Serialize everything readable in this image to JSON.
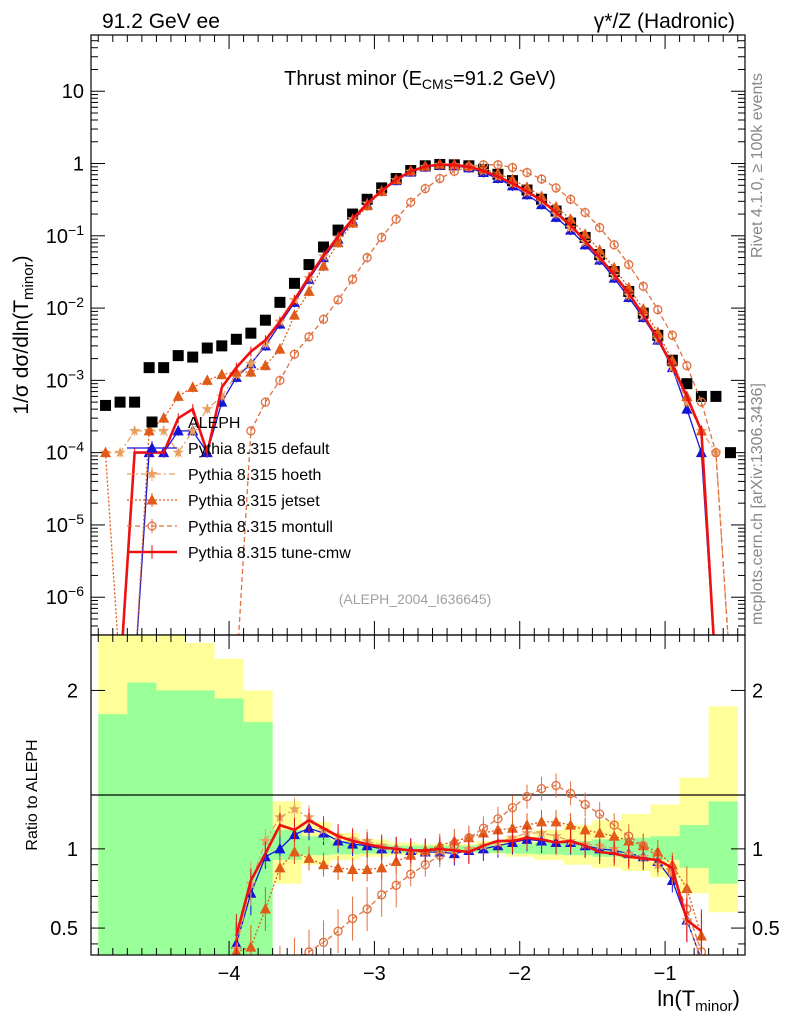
{
  "header": {
    "left": "91.2 GeV ee",
    "right": "γ*/Z (Hadronic)"
  },
  "side_labels": {
    "rivet": "Rivet 4.1.0, ≥ 100k events",
    "mcplots": "mcplots.cern.ch [arXiv:1306.3436]"
  },
  "colors": {
    "aleph": "#000000",
    "default": "#1515d8",
    "hoeth": "#e8a060",
    "jetset": "#e05a18",
    "montull": "#e07040",
    "tune_cmw": "#ee1111",
    "band_inner": "#99ff99",
    "band_outer": "#ffff99"
  },
  "chart_data": [
    {
      "type": "line",
      "panel": "main",
      "title_parts": {
        "main": "Thrust minor (E",
        "sub": "CMS",
        "tail": "=91.2 GeV)"
      },
      "ylabel_parts": {
        "main": "1/σ  dσ/dln(T",
        "sub": "minor",
        "tail": ")"
      },
      "xlabel": "",
      "yscale": "log",
      "xlim": [
        -4.95,
        -0.45
      ],
      "ylim": [
        3e-07,
        60
      ],
      "y_ticks": [
        {
          "value": 1e-06,
          "base": "10",
          "exp": "−6"
        },
        {
          "value": 1e-05,
          "base": "10",
          "exp": "−5"
        },
        {
          "value": 0.0001,
          "base": "10",
          "exp": "−4"
        },
        {
          "value": 0.001,
          "base": "10",
          "exp": "−3"
        },
        {
          "value": 0.01,
          "base": "10",
          "exp": "−2"
        },
        {
          "value": 0.1,
          "base": "10",
          "exp": "−1"
        },
        {
          "value": 1,
          "base": "1",
          "exp": ""
        },
        {
          "value": 10,
          "base": "10",
          "exp": ""
        }
      ],
      "watermark": "(ALEPH_2004_I636645)",
      "legend": [
        {
          "key": "aleph",
          "label": "ALEPH"
        },
        {
          "key": "default",
          "label": "Pythia 8.315 default"
        },
        {
          "key": "hoeth",
          "label": "Pythia 8.315 hoeth"
        },
        {
          "key": "jetset",
          "label": "Pythia 8.315 jetset"
        },
        {
          "key": "montull",
          "label": "Pythia 8.315 montull"
        },
        {
          "key": "tune_cmw",
          "label": "Pythia 8.315 tune-cmw"
        }
      ],
      "x": [
        -4.85,
        -4.75,
        -4.65,
        -4.55,
        -4.45,
        -4.35,
        -4.25,
        -4.15,
        -4.05,
        -3.95,
        -3.85,
        -3.75,
        -3.65,
        -3.55,
        -3.45,
        -3.35,
        -3.25,
        -3.15,
        -3.05,
        -2.95,
        -2.85,
        -2.75,
        -2.65,
        -2.55,
        -2.45,
        -2.35,
        -2.25,
        -2.15,
        -2.05,
        -1.95,
        -1.85,
        -1.75,
        -1.65,
        -1.55,
        -1.45,
        -1.35,
        -1.25,
        -1.15,
        -1.05,
        -0.95,
        -0.85,
        -0.75,
        -0.65,
        -0.55
      ],
      "series": [
        {
          "key": "aleph",
          "name": "ALEPH",
          "style": "square",
          "values": [
            0.00045,
            0.0005,
            0.0005,
            0.0015,
            0.0015,
            0.0022,
            0.0021,
            0.0028,
            0.003,
            0.0037,
            0.0045,
            0.0068,
            0.012,
            0.022,
            0.04,
            0.07,
            0.12,
            0.2,
            0.32,
            0.46,
            0.62,
            0.8,
            0.93,
            0.97,
            0.96,
            0.93,
            0.83,
            0.71,
            0.58,
            0.43,
            0.32,
            0.22,
            0.15,
            0.095,
            0.055,
            0.032,
            0.017,
            0.0085,
            0.0042,
            0.0019,
            0.0009,
            0.0006,
            0.0006,
            0.0001
          ]
        },
        {
          "key": "default",
          "name": "Pythia 8.315 default",
          "style": "triangle-filled",
          "values": [
            null,
            null,
            null,
            0.0001,
            0.0001,
            0.0002,
            0.0002,
            0.0001,
            0.0005,
            0.0011,
            0.0017,
            0.003,
            0.006,
            0.012,
            0.025,
            0.05,
            0.09,
            0.16,
            0.27,
            0.41,
            0.58,
            0.76,
            0.89,
            0.95,
            0.93,
            0.87,
            0.75,
            0.62,
            0.49,
            0.37,
            0.27,
            0.18,
            0.12,
            0.075,
            0.046,
            0.026,
            0.014,
            0.0074,
            0.0036,
            0.0015,
            0.0004,
            0.0001,
            null,
            null
          ]
        },
        {
          "key": "hoeth",
          "name": "Pythia 8.315 hoeth",
          "style": "star",
          "values": [
            0.0001,
            0.0001,
            0.0002,
            0.0002,
            0.0002,
            0.0001,
            0.0002,
            0.0004,
            0.0006,
            0.0012,
            0.0017,
            0.0032,
            0.0065,
            0.013,
            0.026,
            0.052,
            0.095,
            0.17,
            0.28,
            0.42,
            0.59,
            0.77,
            0.9,
            0.96,
            0.95,
            0.9,
            0.79,
            0.66,
            0.53,
            0.4,
            0.3,
            0.2,
            0.13,
            0.082,
            0.049,
            0.028,
            0.015,
            0.0078,
            0.0037,
            0.0015,
            0.0005,
            0.0002,
            0.0001,
            null
          ]
        },
        {
          "key": "jetset",
          "name": "Pythia 8.315 jetset",
          "style": "triangle-filled",
          "values": [
            0.0001,
            null,
            null,
            0.0002,
            0.0003,
            0.0006,
            0.0008,
            0.001,
            0.0012,
            0.0013,
            0.0013,
            0.0016,
            0.0027,
            0.008,
            0.017,
            0.038,
            0.08,
            0.15,
            0.26,
            0.41,
            0.6,
            0.79,
            0.92,
            0.98,
            0.97,
            0.93,
            0.84,
            0.73,
            0.6,
            0.47,
            0.35,
            0.25,
            0.17,
            0.105,
            0.063,
            0.036,
            0.019,
            0.0097,
            0.0046,
            0.0019,
            0.0006,
            0.0002,
            null,
            null
          ]
        },
        {
          "key": "montull",
          "name": "Pythia 8.315 montull",
          "style": "circle-open",
          "values": [
            null,
            null,
            null,
            null,
            null,
            null,
            null,
            null,
            null,
            null,
            0.0002,
            0.0005,
            0.001,
            0.0023,
            0.004,
            0.007,
            0.013,
            0.025,
            0.05,
            0.095,
            0.17,
            0.29,
            0.45,
            0.62,
            0.78,
            0.9,
            0.96,
            0.96,
            0.88,
            0.75,
            0.61,
            0.46,
            0.32,
            0.21,
            0.13,
            0.075,
            0.04,
            0.02,
            0.0095,
            0.0042,
            0.0016,
            0.0005,
            0.0001,
            null
          ]
        },
        {
          "key": "tune_cmw",
          "name": "Pythia 8.315 tune-cmw",
          "style": "line-thick",
          "values": [
            null,
            null,
            0.0001,
            0.0001,
            0.0001,
            0.0003,
            0.0004,
            0.0001,
            0.0008,
            0.0015,
            0.0025,
            0.0036,
            0.0065,
            0.013,
            0.027,
            0.053,
            0.098,
            0.17,
            0.28,
            0.42,
            0.6,
            0.78,
            0.91,
            0.97,
            0.95,
            0.9,
            0.79,
            0.66,
            0.53,
            0.41,
            0.31,
            0.21,
            0.14,
            0.085,
            0.05,
            0.029,
            0.016,
            0.008,
            0.0038,
            0.0016,
            0.0006,
            0.0002,
            null,
            null
          ]
        }
      ]
    },
    {
      "type": "line",
      "panel": "ratio",
      "ylabel": "Ratio to ALEPH",
      "xlabel_parts": {
        "main": "ln(T",
        "sub": "minor",
        "tail": ")"
      },
      "ylim": [
        0.33,
        2.35
      ],
      "y_ticks": [
        0.5,
        1,
        2
      ],
      "y_tick_labels": [
        "0.5",
        "1",
        "2"
      ],
      "x_ticks": [
        -4,
        -3,
        -2,
        -1
      ],
      "x_tick_labels": [
        "−4",
        "−3",
        "−2",
        "−1"
      ],
      "band_x_edges": [
        -4.9,
        -4.7,
        -4.5,
        -4.3,
        -4.1,
        -3.9,
        -3.7,
        -3.5,
        -3.3,
        -3.1,
        -2.9,
        -2.7,
        -2.5,
        -2.3,
        -2.1,
        -1.9,
        -1.7,
        -1.5,
        -1.3,
        -1.1,
        -0.9,
        -0.7,
        -0.5
      ],
      "band_inner": {
        "low": [
          0.2,
          0.2,
          0.2,
          0.2,
          0.2,
          0.2,
          0.93,
          0.96,
          0.965,
          0.97,
          0.975,
          0.975,
          0.98,
          0.975,
          0.97,
          0.965,
          0.96,
          0.95,
          0.94,
          0.93,
          0.88,
          0.78
        ],
        "high": [
          1.85,
          2.05,
          2.0,
          2.0,
          1.95,
          1.8,
          1.12,
          1.08,
          1.05,
          1.03,
          1.02,
          1.02,
          1.02,
          1.025,
          1.03,
          1.04,
          1.05,
          1.06,
          1.07,
          1.08,
          1.15,
          1.3
        ]
      },
      "band_outer": {
        "low": [
          0.2,
          0.2,
          0.2,
          0.2,
          0.2,
          0.2,
          0.78,
          0.9,
          0.93,
          0.95,
          0.96,
          0.97,
          0.975,
          0.97,
          0.95,
          0.93,
          0.9,
          0.88,
          0.86,
          0.82,
          0.72,
          0.6
        ],
        "high": [
          2.35,
          2.35,
          2.35,
          2.3,
          2.2,
          2.0,
          1.3,
          1.17,
          1.1,
          1.06,
          1.04,
          1.03,
          1.03,
          1.05,
          1.08,
          1.12,
          1.15,
          1.18,
          1.22,
          1.28,
          1.45,
          1.9
        ]
      },
      "x": [
        -4.85,
        -4.75,
        -4.65,
        -4.55,
        -4.45,
        -4.35,
        -4.25,
        -4.15,
        -4.05,
        -3.95,
        -3.85,
        -3.75,
        -3.65,
        -3.55,
        -3.45,
        -3.35,
        -3.25,
        -3.15,
        -3.05,
        -2.95,
        -2.85,
        -2.75,
        -2.65,
        -2.55,
        -2.45,
        -2.35,
        -2.25,
        -2.15,
        -2.05,
        -1.95,
        -1.85,
        -1.75,
        -1.65,
        -1.55,
        -1.45,
        -1.35,
        -1.25,
        -1.15,
        -1.05,
        -0.95,
        -0.85,
        -0.75,
        -0.65,
        -0.55
      ],
      "series": [
        {
          "key": "default",
          "name": "Pythia 8.315 default",
          "style": "triangle-filled",
          "values": [
            null,
            null,
            null,
            null,
            null,
            null,
            null,
            null,
            null,
            0.4,
            0.72,
            0.95,
            1.0,
            1.09,
            1.13,
            1.1,
            1.05,
            1.03,
            1.02,
            1.0,
            1.0,
            0.99,
            0.98,
            0.98,
            0.97,
            0.99,
            1.0,
            1.02,
            1.04,
            1.06,
            1.05,
            1.04,
            1.04,
            1.02,
            1.0,
            0.99,
            0.97,
            0.95,
            0.92,
            0.8,
            0.55,
            0.3,
            null,
            null
          ]
        },
        {
          "key": "hoeth",
          "name": "Pythia 8.315 hoeth",
          "style": "star",
          "values": [
            null,
            null,
            null,
            null,
            null,
            null,
            null,
            null,
            null,
            0.37,
            0.78,
            1.05,
            1.2,
            1.25,
            1.2,
            1.12,
            1.08,
            1.06,
            1.05,
            1.02,
            1.0,
            0.98,
            0.98,
            0.99,
            0.99,
            1.0,
            1.02,
            1.04,
            1.07,
            1.1,
            1.1,
            1.08,
            1.05,
            1.03,
            1.02,
            1.0,
            0.97,
            0.95,
            0.9,
            0.85,
            0.55,
            0.3,
            null,
            null
          ]
        },
        {
          "key": "jetset",
          "name": "Pythia 8.315 jetset",
          "style": "triangle-filled",
          "values": [
            null,
            null,
            null,
            null,
            null,
            null,
            null,
            null,
            null,
            0.35,
            0.38,
            0.62,
            0.88,
            0.98,
            0.94,
            0.9,
            0.88,
            0.87,
            0.87,
            0.88,
            0.92,
            0.96,
            0.99,
            1.02,
            1.05,
            1.07,
            1.1,
            1.12,
            1.13,
            1.15,
            1.17,
            1.17,
            1.15,
            1.12,
            1.1,
            1.08,
            1.05,
            1.02,
            0.98,
            0.9,
            0.75,
            0.45,
            null,
            null
          ]
        },
        {
          "key": "montull",
          "name": "Pythia 8.315 montull",
          "style": "circle-open",
          "values": [
            null,
            null,
            null,
            null,
            null,
            null,
            null,
            null,
            null,
            null,
            null,
            null,
            0.25,
            0.3,
            0.35,
            0.41,
            0.48,
            0.56,
            0.62,
            0.71,
            0.77,
            0.84,
            0.9,
            0.96,
            1.02,
            1.07,
            1.13,
            1.19,
            1.26,
            1.33,
            1.38,
            1.4,
            1.35,
            1.28,
            1.22,
            1.15,
            1.08,
            1.02,
            0.95,
            0.85,
            0.62,
            0.35,
            null,
            null
          ]
        },
        {
          "key": "tune_cmw",
          "name": "Pythia 8.315 tune-cmw",
          "style": "line-thick",
          "values": [
            null,
            null,
            null,
            null,
            null,
            null,
            null,
            null,
            null,
            0.45,
            0.8,
            0.97,
            1.15,
            1.12,
            1.18,
            1.13,
            1.08,
            1.05,
            1.03,
            1.01,
            1.0,
            0.99,
            0.99,
            1.0,
            0.99,
            0.98,
            1.02,
            1.05,
            1.05,
            1.07,
            1.06,
            1.04,
            1.05,
            1.02,
            0.98,
            0.97,
            0.95,
            0.94,
            0.93,
            0.88,
            0.55,
            0.48,
            null,
            null
          ]
        }
      ]
    }
  ]
}
